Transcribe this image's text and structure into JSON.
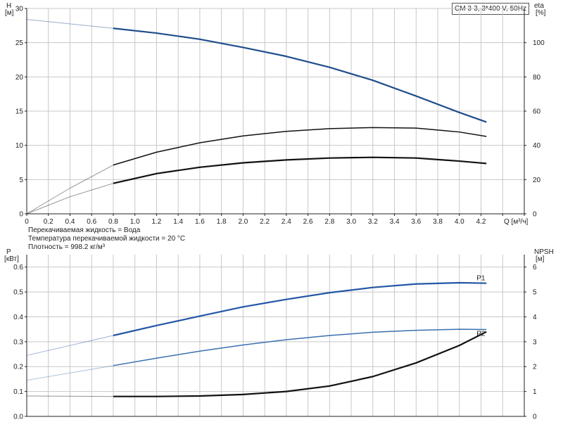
{
  "legend": "CM 3-3, 3*400 V, 50Hz",
  "notes": [
    "Перекачиваемая жидкость = Вода",
    "Температура перекачиваемой жидкости = 20 °C",
    "Плотность = 998.2 кг/м³"
  ],
  "colors": {
    "head": "#1f4e8c",
    "p1": "#2456a6",
    "p2": "#3b6fb0",
    "eta": "#111111",
    "npsh": "#111111",
    "grid": "#c8c8c8"
  },
  "chart_data": [
    {
      "type": "line",
      "x_label": "Q [м³/ч]",
      "xlim": [
        0,
        4.6
      ],
      "x_ticks": [
        0,
        0.2,
        0.4,
        0.6,
        0.8,
        1.0,
        1.2,
        1.4,
        1.6,
        1.8,
        2.0,
        2.2,
        2.4,
        2.6,
        2.8,
        3.0,
        3.2,
        3.4,
        3.6,
        3.8,
        4.0,
        4.2
      ],
      "y_left": {
        "label_top": "H",
        "label_unit": "[м]",
        "lim": [
          0,
          30
        ],
        "ticks": [
          0,
          5,
          10,
          15,
          20,
          25,
          30
        ]
      },
      "y_right": {
        "label_top": "eta",
        "label_unit": "[%]",
        "lim": [
          0,
          120
        ],
        "ticks": [
          0,
          20,
          40,
          60,
          80,
          100
        ]
      },
      "grid": true,
      "series": [
        {
          "axis": "left",
          "color_key": "head",
          "x": [
            0,
            0.8,
            1.2,
            1.6,
            2.0,
            2.4,
            2.8,
            3.2,
            3.6,
            4.0,
            4.25
          ],
          "y": [
            28.4,
            27.1,
            26.4,
            25.5,
            24.3,
            23.0,
            21.4,
            19.5,
            17.2,
            14.8,
            13.4
          ]
        },
        {
          "axis": "right",
          "color_key": "eta",
          "x": [
            0,
            0.4,
            0.8,
            1.2,
            1.6,
            2.0,
            2.4,
            2.8,
            3.2,
            3.6,
            4.0,
            4.25
          ],
          "y": [
            0,
            15,
            28.5,
            36,
            41.5,
            45.5,
            48.2,
            49.8,
            50.4,
            50.1,
            47.8,
            45.2
          ]
        },
        {
          "axis": "right",
          "color_key": "eta",
          "x": [
            0,
            0.4,
            0.8,
            1.2,
            1.6,
            2.0,
            2.4,
            2.8,
            3.2,
            3.6,
            4.0,
            4.25
          ],
          "y": [
            0,
            10,
            17.8,
            23.5,
            27.2,
            29.8,
            31.5,
            32.6,
            33.0,
            32.6,
            30.8,
            29.4
          ]
        }
      ]
    },
    {
      "type": "line",
      "xlim": [
        0,
        4.6
      ],
      "y_left": {
        "label_top": "P",
        "label_unit": "[кВт]",
        "lim": [
          0,
          0.65
        ],
        "ticks": [
          0.0,
          0.1,
          0.2,
          0.3,
          0.4,
          0.5,
          0.6
        ]
      },
      "y_right": {
        "label_top": "NPSH",
        "label_unit": "[м]",
        "lim": [
          0,
          6.5
        ],
        "ticks": [
          0,
          1,
          2,
          3,
          4,
          5,
          6
        ]
      },
      "grid": true,
      "series": [
        {
          "name": "P1",
          "axis": "left",
          "color_key": "p1",
          "x": [
            0,
            0.8,
            1.2,
            1.6,
            2.0,
            2.4,
            2.8,
            3.2,
            3.6,
            4.0,
            4.25
          ],
          "y": [
            0.245,
            0.325,
            0.365,
            0.403,
            0.44,
            0.47,
            0.497,
            0.518,
            0.532,
            0.537,
            0.535
          ]
        },
        {
          "name": "P2",
          "axis": "left",
          "color_key": "p2",
          "x": [
            0,
            0.8,
            1.2,
            1.6,
            2.0,
            2.4,
            2.8,
            3.2,
            3.6,
            4.0,
            4.25
          ],
          "y": [
            0.145,
            0.204,
            0.234,
            0.262,
            0.287,
            0.308,
            0.325,
            0.338,
            0.346,
            0.35,
            0.349
          ]
        },
        {
          "axis": "right",
          "color_key": "npsh",
          "x": [
            0,
            0.8,
            1.2,
            1.6,
            2.0,
            2.4,
            2.8,
            3.2,
            3.6,
            4.0,
            4.25
          ],
          "y": [
            0.82,
            0.8,
            0.8,
            0.82,
            0.88,
            1.0,
            1.22,
            1.6,
            2.15,
            2.85,
            3.4
          ]
        }
      ]
    }
  ]
}
